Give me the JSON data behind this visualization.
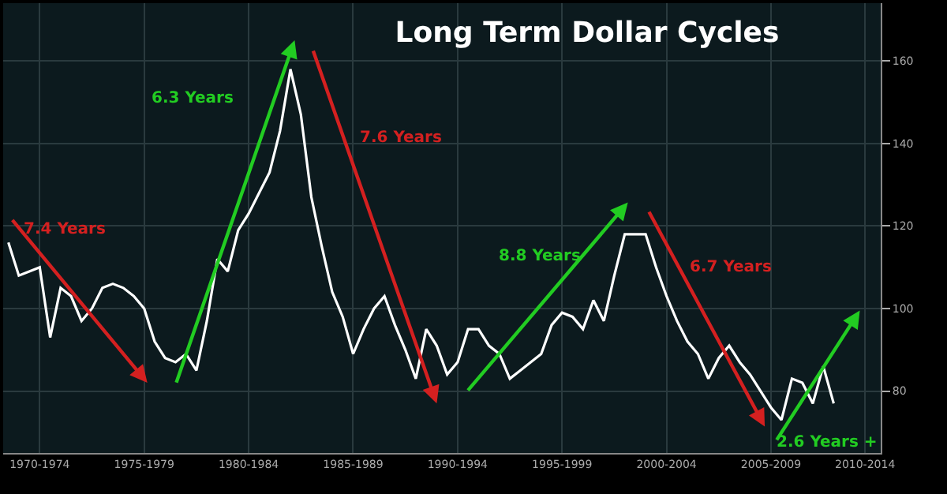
{
  "chart_data": {
    "type": "line",
    "title": "Long Term Dollar Cycles",
    "categories": [
      null,
      null,
      null,
      "1970-1974",
      null,
      null,
      null,
      null,
      null,
      null,
      null,
      null,
      null,
      "1975-1979",
      null,
      null,
      null,
      null,
      null,
      null,
      null,
      null,
      null,
      "1980-1984",
      null,
      null,
      null,
      null,
      null,
      null,
      null,
      null,
      null,
      "1985-1989",
      null,
      null,
      null,
      null,
      null,
      null,
      null,
      null,
      null,
      "1990-1994",
      null,
      null,
      null,
      null,
      null,
      null,
      null,
      null,
      null,
      "1995-1999",
      null,
      null,
      null,
      null,
      null,
      null,
      null,
      null,
      null,
      "2000-2004",
      null,
      null,
      null,
      null,
      null,
      null,
      null,
      null,
      null,
      "2005-2009",
      null,
      null,
      null,
      null,
      null,
      null,
      null,
      null,
      "2010-2014",
      null
    ],
    "ylim": [
      65,
      174
    ],
    "yticks": [
      80,
      100,
      120,
      140,
      160
    ],
    "grid": true,
    "series": [
      {
        "color": "#ffffff",
        "values": [
          116,
          108,
          109,
          110,
          93,
          105,
          103,
          97,
          100,
          105,
          106,
          105,
          103,
          100,
          92,
          88,
          87,
          89,
          85,
          97,
          112,
          109,
          119,
          123,
          128,
          133,
          143,
          158,
          147,
          127,
          115,
          104,
          98,
          89,
          95,
          100,
          103,
          96,
          90,
          83,
          95,
          91,
          84,
          87,
          95,
          95,
          91,
          89,
          83,
          85,
          87,
          89,
          96,
          99,
          98,
          95,
          102,
          97,
          108,
          118,
          118,
          118,
          110,
          103,
          97,
          92,
          89,
          83,
          88,
          91,
          87,
          84,
          80,
          76,
          73,
          83,
          82,
          77,
          86,
          77,
          null,
          null,
          null,
          null
        ]
      }
    ],
    "annotations": [
      "7.4 Years",
      "6.3 Years",
      "7.6 Years",
      "8.8 Years",
      "6.7 Years",
      "2.6 Years +"
    ]
  }
}
